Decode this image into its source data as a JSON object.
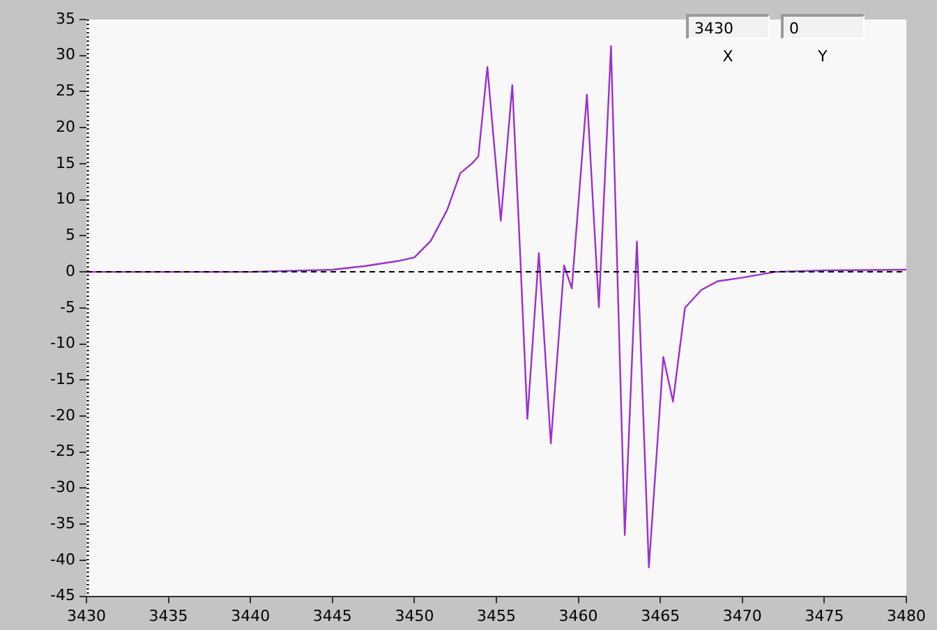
{
  "chart_data": {
    "type": "line",
    "annotations": [
      "3430",
      "0",
      "X",
      "Y"
    ],
    "x": [
      3430,
      3435,
      3440,
      3445,
      3447,
      3449,
      3450,
      3451,
      3452,
      3452.8,
      3453.5,
      3453.9,
      3454.45,
      3455.27,
      3455.97,
      3456.4,
      3456.89,
      3457.59,
      3458.32,
      3459.13,
      3459.6,
      3460.52,
      3461.25,
      3461.99,
      3462.83,
      3463.57,
      3464.3,
      3465.18,
      3465.77,
      3466.5,
      3467.5,
      3468.5,
      3470,
      3472,
      3475,
      3480
    ],
    "series": [
      {
        "color": "#9b30d0",
        "values": [
          0,
          0,
          0,
          0.3,
          0.8,
          1.5,
          2,
          4.3,
          8.6,
          13.7,
          15,
          16,
          28.4,
          7.1,
          25.9,
          5,
          -20.4,
          2.6,
          -23.8,
          0.9,
          -2.3,
          24.6,
          -4.9,
          31.3,
          -36.5,
          4.2,
          -41,
          -11.8,
          -18,
          -5,
          -2.5,
          -1.3,
          -0.8,
          0,
          0.2,
          0.3
        ]
      }
    ],
    "xlim": [
      3430,
      3480
    ],
    "xticks": [
      3430,
      3435,
      3440,
      3445,
      3450,
      3455,
      3460,
      3465,
      3470,
      3475,
      3480
    ],
    "ylim": [
      -45,
      35
    ],
    "yticks": [
      -45,
      -40,
      -35,
      -30,
      -25,
      -20,
      -15,
      -10,
      -5,
      0,
      5,
      10,
      15,
      20,
      25,
      30,
      35
    ],
    "ref_lines": [
      {
        "axis": "y",
        "value": 0,
        "color": "#000000",
        "line_style": "dashed"
      },
      {
        "axis": "x",
        "value": 3430,
        "color": "#000000",
        "line_style": "dotted"
      }
    ],
    "grid": false,
    "legend": false,
    "marker": "none",
    "line_style": "solid"
  }
}
